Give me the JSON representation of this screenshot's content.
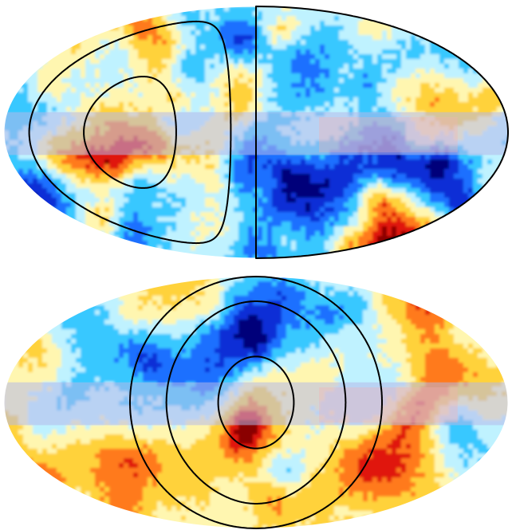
{
  "figure": {
    "background_color": "#ffffff",
    "outline_color": "#000000",
    "palette": [
      "#00007a",
      "#0a2fd6",
      "#1e6fff",
      "#37c8ff",
      "#bff2ff",
      "#fff6b0",
      "#ffd23a",
      "#ff7a1a",
      "#e0140e",
      "#8a0000"
    ],
    "galactic_band_color": "#b4b8ea",
    "galactic_band_warm_color": "#f4b2b2"
  },
  "maps": [
    {
      "name": "top-sky-map",
      "projection": "mollweide",
      "seed": 11,
      "rings": [
        {
          "kind": "circle-center",
          "lon": -90,
          "lat": 0,
          "radius_deg": 90
        },
        {
          "kind": "circle-center",
          "lon": 90,
          "lat": 0,
          "radius_deg": 72
        },
        {
          "kind": "circle-center",
          "lon": 90,
          "lat": 0,
          "radius_deg": 33
        }
      ]
    },
    {
      "name": "bottom-sky-map",
      "projection": "mollweide",
      "seed": 29,
      "rings": [
        {
          "kind": "circle-center",
          "lon": 0,
          "lat": 0,
          "radius_deg": 90
        },
        {
          "kind": "circle-center",
          "lon": 0,
          "lat": 0,
          "radius_deg": 64
        },
        {
          "kind": "circle-center",
          "lon": 0,
          "lat": 0,
          "radius_deg": 27
        }
      ]
    }
  ]
}
